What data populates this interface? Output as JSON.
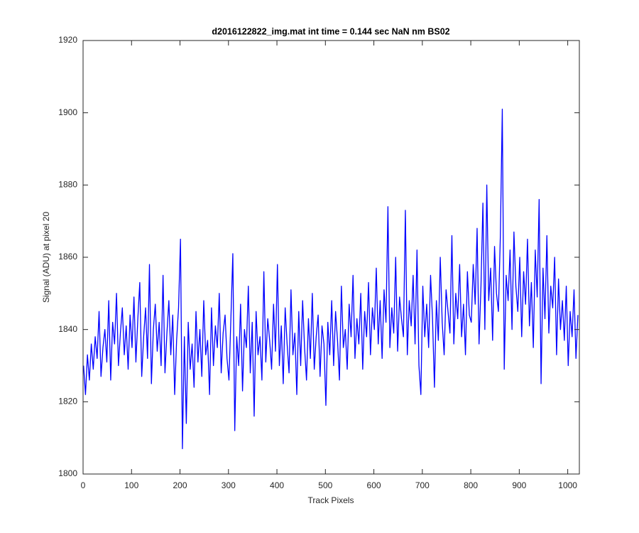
{
  "chart_data": {
    "type": "line",
    "title": "d2016122822_img.mat int time = 0.144 sec  NaN nm BS02",
    "x_label": "Track Pixels",
    "y_label": "Signal (ADU) at pixel 20",
    "xlim": [
      0,
      1024
    ],
    "xticks": [
      0,
      100,
      200,
      300,
      400,
      500,
      600,
      700,
      800,
      900,
      1000
    ],
    "ylim": [
      1800,
      1920
    ],
    "yticks": [
      1800,
      1820,
      1840,
      1860,
      1880,
      1900,
      1920
    ],
    "grid": false,
    "x": [
      1,
      5,
      9,
      13,
      17,
      21,
      25,
      29,
      33,
      37,
      41,
      45,
      49,
      53,
      57,
      61,
      65,
      69,
      73,
      77,
      81,
      85,
      89,
      93,
      97,
      101,
      105,
      109,
      113,
      117,
      121,
      125,
      129,
      133,
      137,
      141,
      145,
      149,
      153,
      157,
      161,
      165,
      169,
      173,
      177,
      181,
      185,
      189,
      193,
      197,
      201,
      205,
      209,
      213,
      217,
      221,
      225,
      229,
      233,
      237,
      241,
      245,
      249,
      253,
      257,
      261,
      265,
      269,
      273,
      277,
      281,
      285,
      289,
      293,
      297,
      301,
      305,
      309,
      313,
      317,
      321,
      325,
      329,
      333,
      337,
      341,
      345,
      349,
      353,
      357,
      361,
      365,
      369,
      373,
      377,
      381,
      385,
      389,
      393,
      397,
      401,
      405,
      409,
      413,
      417,
      421,
      425,
      429,
      433,
      437,
      441,
      445,
      449,
      453,
      457,
      461,
      465,
      469,
      473,
      477,
      481,
      485,
      489,
      493,
      497,
      501,
      505,
      509,
      513,
      517,
      521,
      525,
      529,
      533,
      537,
      541,
      545,
      549,
      553,
      557,
      561,
      565,
      569,
      573,
      577,
      581,
      585,
      589,
      593,
      597,
      601,
      605,
      609,
      613,
      617,
      621,
      625,
      629,
      633,
      637,
      641,
      645,
      649,
      653,
      657,
      661,
      665,
      669,
      673,
      677,
      681,
      685,
      689,
      693,
      697,
      701,
      705,
      709,
      713,
      717,
      721,
      725,
      729,
      733,
      737,
      741,
      745,
      749,
      753,
      757,
      761,
      765,
      769,
      773,
      777,
      781,
      785,
      789,
      793,
      797,
      801,
      805,
      809,
      813,
      817,
      821,
      825,
      829,
      833,
      837,
      841,
      845,
      849,
      853,
      857,
      861,
      865,
      869,
      873,
      877,
      881,
      885,
      889,
      893,
      897,
      901,
      905,
      909,
      913,
      917,
      921,
      925,
      929,
      933,
      937,
      941,
      945,
      949,
      953,
      957,
      961,
      965,
      969,
      973,
      977,
      981,
      985,
      989,
      993,
      997,
      1001,
      1005,
      1009,
      1013,
      1017,
      1021
    ],
    "series": [
      {
        "color": "#0000ff",
        "values": [
          1830,
          1822,
          1833,
          1826,
          1836,
          1829,
          1838,
          1832,
          1845,
          1827,
          1835,
          1840,
          1831,
          1848,
          1826,
          1842,
          1836,
          1850,
          1830,
          1839,
          1846,
          1833,
          1841,
          1829,
          1844,
          1835,
          1849,
          1831,
          1843,
          1853,
          1827,
          1838,
          1846,
          1832,
          1858,
          1825,
          1840,
          1847,
          1834,
          1842,
          1830,
          1855,
          1828,
          1839,
          1848,
          1833,
          1844,
          1822,
          1837,
          1846,
          1865,
          1807,
          1838,
          1814,
          1842,
          1829,
          1836,
          1824,
          1845,
          1831,
          1840,
          1827,
          1848,
          1833,
          1837,
          1822,
          1846,
          1830,
          1841,
          1835,
          1850,
          1828,
          1839,
          1844,
          1832,
          1826,
          1843,
          1861,
          1812,
          1838,
          1830,
          1847,
          1823,
          1840,
          1835,
          1852,
          1828,
          1842,
          1816,
          1845,
          1833,
          1838,
          1826,
          1856,
          1831,
          1843,
          1837,
          1829,
          1847,
          1834,
          1858,
          1830,
          1841,
          1825,
          1846,
          1836,
          1828,
          1851,
          1833,
          1839,
          1822,
          1845,
          1830,
          1848,
          1835,
          1826,
          1843,
          1832,
          1850,
          1829,
          1838,
          1844,
          1827,
          1841,
          1836,
          1819,
          1842,
          1833,
          1848,
          1830,
          1845,
          1837,
          1826,
          1852,
          1835,
          1840,
          1829,
          1847,
          1838,
          1855,
          1832,
          1843,
          1836,
          1850,
          1829,
          1845,
          1838,
          1853,
          1833,
          1846,
          1840,
          1857,
          1836,
          1848,
          1832,
          1851,
          1842,
          1874,
          1835,
          1846,
          1839,
          1860,
          1834,
          1849,
          1843,
          1838,
          1873,
          1833,
          1848,
          1841,
          1855,
          1836,
          1862,
          1830,
          1822,
          1852,
          1838,
          1847,
          1835,
          1855,
          1843,
          1824,
          1848,
          1837,
          1860,
          1842,
          1833,
          1851,
          1845,
          1839,
          1866,
          1836,
          1850,
          1843,
          1858,
          1838,
          1847,
          1833,
          1856,
          1844,
          1842,
          1858,
          1847,
          1868,
          1836,
          1852,
          1875,
          1840,
          1880,
          1848,
          1857,
          1837,
          1863,
          1850,
          1845,
          1866,
          1901,
          1829,
          1855,
          1848,
          1862,
          1840,
          1867,
          1852,
          1845,
          1860,
          1838,
          1856,
          1847,
          1865,
          1841,
          1853,
          1835,
          1862,
          1849,
          1876,
          1825,
          1857,
          1843,
          1866,
          1839,
          1852,
          1846,
          1860,
          1833,
          1854,
          1840,
          1848,
          1837,
          1852,
          1830,
          1845,
          1838,
          1851,
          1832,
          1844
        ]
      }
    ]
  }
}
